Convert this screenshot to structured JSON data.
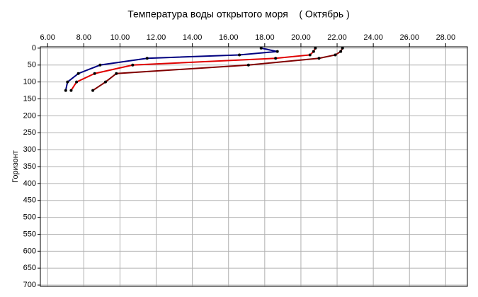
{
  "chart_data": {
    "type": "line",
    "title": "Температура воды открытого моря    ( Октябрь )",
    "y_label": "Горизонт",
    "series": [
      {
        "color": "#000080",
        "x": [
          17.8,
          18.7,
          16.6,
          11.5,
          8.9,
          7.7,
          7.1,
          7.0
        ],
        "values": [
          0,
          10,
          20,
          30,
          50,
          75,
          100,
          125
        ]
      },
      {
        "color": "#e00000",
        "x": [
          20.8,
          20.7,
          20.5,
          18.6,
          10.7,
          8.6,
          7.6,
          7.3
        ],
        "values": [
          0,
          10,
          20,
          30,
          50,
          75,
          100,
          125
        ]
      },
      {
        "color": "#800000",
        "x": [
          22.3,
          22.2,
          21.9,
          21.0,
          17.1,
          9.8,
          9.2,
          8.5
        ],
        "values": [
          0,
          10,
          20,
          30,
          50,
          75,
          100,
          125
        ]
      }
    ],
    "xlim": [
      5.6,
      29.2
    ],
    "xticks": [
      {
        "value": 6,
        "label": "6.00"
      },
      {
        "value": 8,
        "label": "8.00"
      },
      {
        "value": 10,
        "label": "10.00"
      },
      {
        "value": 12,
        "label": "12.00"
      },
      {
        "value": 14,
        "label": "14.00"
      },
      {
        "value": 16,
        "label": "16.00"
      },
      {
        "value": 18,
        "label": "18.00"
      },
      {
        "value": 20,
        "label": "20.00"
      },
      {
        "value": 22,
        "label": "22.00"
      },
      {
        "value": 24,
        "label": "24.00"
      },
      {
        "value": 26,
        "label": "26.00"
      },
      {
        "value": 28,
        "label": "28.00"
      }
    ],
    "ylim": [
      -4,
      704
    ],
    "y_inverted": true,
    "yticks": [
      0,
      50,
      100,
      150,
      200,
      250,
      300,
      350,
      400,
      450,
      500,
      550,
      600,
      650,
      700
    ],
    "grid": true
  }
}
